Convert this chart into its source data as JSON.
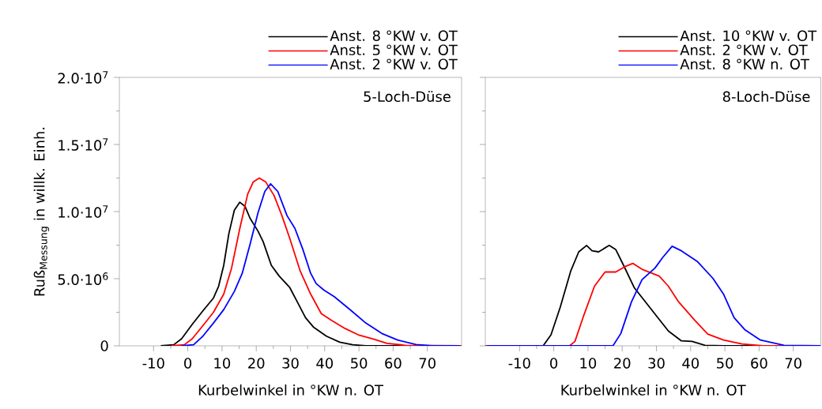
{
  "chart_data": [
    {
      "type": "line",
      "annotations": [
        "5-Loch-Düse"
      ],
      "xlabel": "Kurbelwinkel in °KW n. OT",
      "ylabel": "Ruß$_{Messung}$ in willk. Einh.",
      "xlim": [
        -20,
        80
      ],
      "ylim": [
        0,
        20000000
      ],
      "xticks": [
        -10,
        0,
        10,
        20,
        30,
        40,
        50,
        60,
        70
      ],
      "yticks": [
        {
          "value": 0,
          "label": "0"
        },
        {
          "value": 5000000,
          "label": "5.0·10$^{6}$"
        },
        {
          "value": 10000000,
          "label": "1.0·10$^{7}$"
        },
        {
          "value": 15000000,
          "label": "1.5·10$^{7}$"
        },
        {
          "value": 20000000,
          "label": "2.0·10$^{7}$"
        }
      ],
      "legend": "top right",
      "series": [
        {
          "name": "Anst. 8 °KW v. OT",
          "color": "#000000",
          "x": [
            -7.9,
            -4.1,
            -1.8,
            1.3,
            4.4,
            7.5,
            9,
            10.5,
            12,
            13.6,
            15.2,
            16.7,
            18.2,
            20.5,
            22,
            24.4,
            26.7,
            29.8,
            32,
            34.4,
            36.7,
            40.5,
            44.4,
            48.2,
            52,
            80
          ],
          "values": [
            0,
            80000,
            530000,
            1600000,
            2600000,
            3560000,
            4440000,
            6000000,
            8360000,
            10100000,
            10700000,
            10400000,
            9500000,
            8550000,
            7770000,
            6000000,
            5200000,
            4340000,
            3270000,
            2100000,
            1400000,
            720000,
            270000,
            80000,
            0,
            0
          ]
        },
        {
          "name": "Anst. 5 °KW v. OT",
          "color": "#ff0000",
          "x": [
            -4.8,
            -1,
            1.3,
            4.4,
            7.5,
            10.5,
            12.8,
            15.2,
            17.5,
            19.1,
            20.9,
            22.8,
            25.2,
            27.5,
            29.8,
            32.8,
            35.9,
            39,
            42,
            45.9,
            49.8,
            54.4,
            58.2,
            63.6,
            80
          ],
          "values": [
            0,
            80000,
            530000,
            1500000,
            2500000,
            3850000,
            5800000,
            8750000,
            11300000,
            12200000,
            12500000,
            12200000,
            11200000,
            9700000,
            8000000,
            5600000,
            3850000,
            2400000,
            1900000,
            1300000,
            820000,
            490000,
            180000,
            40000,
            0
          ]
        },
        {
          "name": "Anst. 2 °KW v. OT",
          "color": "#0000ff",
          "x": [
            -1.8,
            1.7,
            4.4,
            7.5,
            10.5,
            13.6,
            15.9,
            18.2,
            20.5,
            22.5,
            24.2,
            26.3,
            29,
            31.3,
            33.6,
            35.9,
            37.5,
            39.8,
            42.8,
            47.5,
            52,
            56.7,
            61.3,
            66.7,
            71.3,
            79.5
          ],
          "values": [
            0,
            80000,
            720000,
            1700000,
            2700000,
            4050000,
            5400000,
            7570000,
            9900000,
            11500000,
            12070000,
            11500000,
            9700000,
            8750000,
            7200000,
            5400000,
            4640000,
            4150000,
            3660000,
            2680000,
            1700000,
            920000,
            430000,
            100000,
            0,
            0
          ]
        }
      ]
    },
    {
      "type": "line",
      "annotations": [
        "8-Loch-Düse"
      ],
      "xlabel": "Kurbelwinkel in °KW n. OT",
      "xlim": [
        -20,
        78
      ],
      "ylim": [
        0,
        20000000
      ],
      "xticks": [
        -10,
        0,
        10,
        20,
        30,
        40,
        50,
        60,
        70
      ],
      "yticks": [
        {
          "value": 0,
          "label": null
        },
        {
          "value": 5000000,
          "label": null
        },
        {
          "value": 10000000,
          "label": null
        },
        {
          "value": 15000000,
          "label": null
        },
        {
          "value": 20000000,
          "label": null
        }
      ],
      "tick_labels": "x",
      "legend": "top right",
      "series": [
        {
          "name": "Anst. 10 °KW v. OT",
          "color": "#000000",
          "x": [
            -20,
            -3.1,
            -0.8,
            1.9,
            5,
            7.3,
            9.6,
            11.2,
            13.1,
            16.2,
            18.1,
            20.4,
            23.5,
            26.5,
            30.4,
            33.5,
            37.3,
            40.4,
            44.2,
            49.6,
            78
          ],
          "values": [
            0,
            0,
            820000,
            2880000,
            5600000,
            7000000,
            7480000,
            7080000,
            7000000,
            7480000,
            7180000,
            6000000,
            4340000,
            3370000,
            2100000,
            1100000,
            370000,
            330000,
            40000,
            0,
            0
          ]
        },
        {
          "name": "Anst. 2 °KW v. OT",
          "color": "#ff0000",
          "x": [
            -20,
            4.6,
            6.2,
            8.8,
            11.9,
            15,
            18.1,
            20.8,
            23.1,
            25.8,
            30.8,
            33.5,
            36.5,
            41.2,
            45,
            49.6,
            55,
            61.2,
            78
          ],
          "values": [
            0,
            0,
            330000,
            2290000,
            4440000,
            5500000,
            5500000,
            5900000,
            6140000,
            5700000,
            5200000,
            4440000,
            3270000,
            1900000,
            880000,
            430000,
            140000,
            0,
            0
          ]
        },
        {
          "name": "Anst. 8 °KW n. OT",
          "color": "#0000ff",
          "x": [
            -19.5,
            17.3,
            19.6,
            22.7,
            25.8,
            29.6,
            31.9,
            34.6,
            37.3,
            41.9,
            46.5,
            49.6,
            52.7,
            55.8,
            60.4,
            67.3,
            78
          ],
          "values": [
            0,
            0,
            920000,
            3270000,
            4930000,
            5800000,
            6600000,
            7420000,
            7080000,
            6300000,
            5030000,
            3860000,
            2100000,
            1210000,
            430000,
            40000,
            0
          ]
        }
      ]
    }
  ]
}
